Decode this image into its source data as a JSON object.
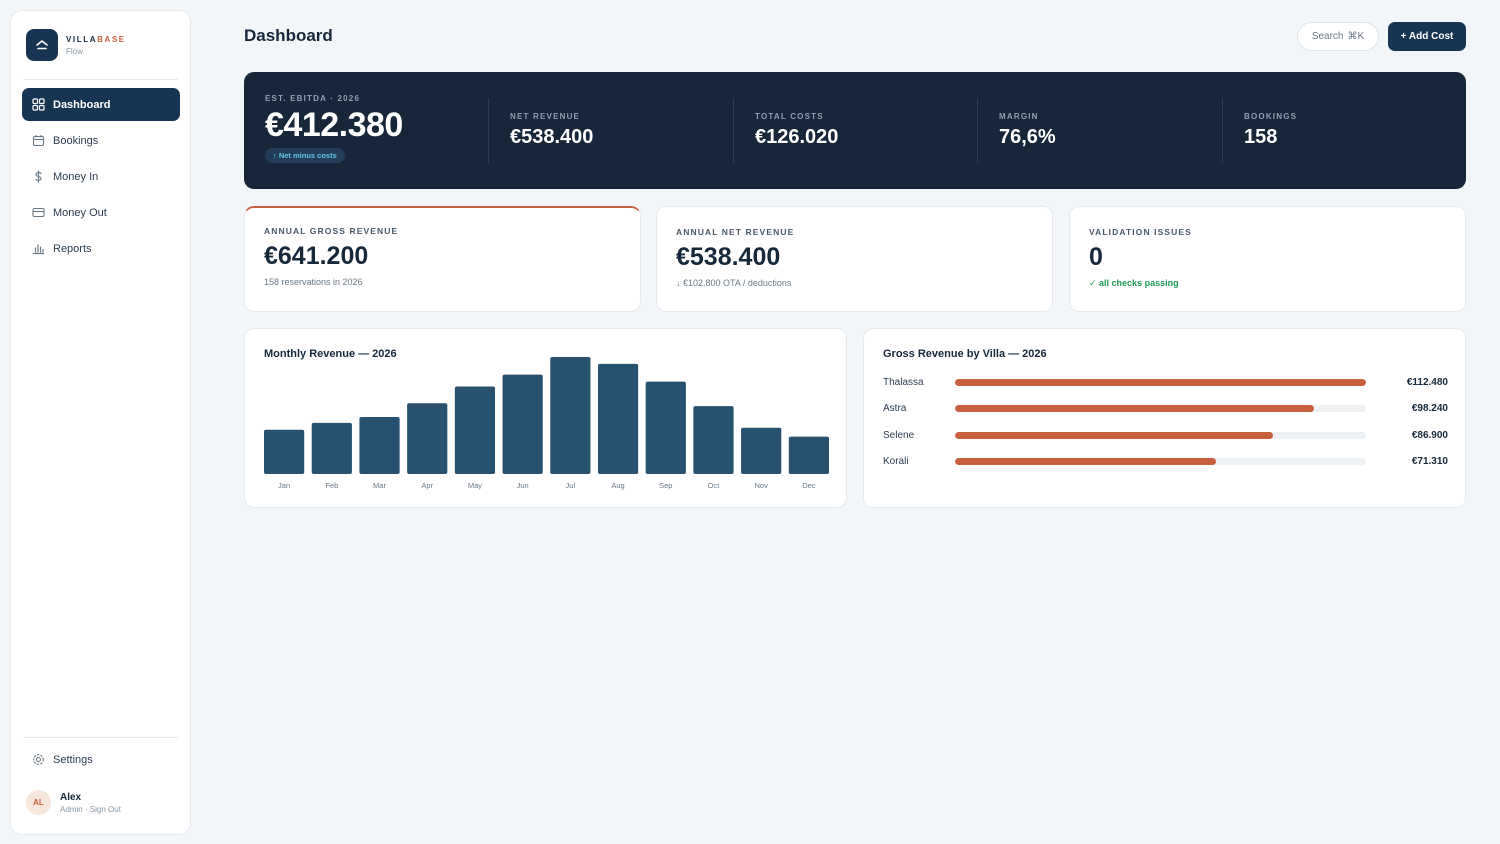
{
  "brand": {
    "name_part1": "VILLA",
    "name_part2": "BASE",
    "subtitle": "Flow"
  },
  "sidebar": {
    "items": [
      {
        "label": "Dashboard",
        "icon": "grid-icon",
        "active": true
      },
      {
        "label": "Bookings",
        "icon": "calendar-icon",
        "active": false
      },
      {
        "label": "Money In",
        "icon": "dollar-icon",
        "active": false
      },
      {
        "label": "Money Out",
        "icon": "credit-card-icon",
        "active": false
      },
      {
        "label": "Reports",
        "icon": "bar-chart-icon",
        "active": false
      }
    ],
    "settings_label": "Settings",
    "user": {
      "initials": "AL",
      "name": "Alex",
      "sub": "Admin · Sign Out"
    }
  },
  "header": {
    "title": "Dashboard",
    "search_label": "Search",
    "search_shortcut": "⌘K",
    "add_label": "+ Add Cost"
  },
  "hero": {
    "main_label": "EST. EBITDA · 2026",
    "main_value": "€412.380",
    "badge": "↑ Net minus costs",
    "stats": [
      {
        "label": "NET REVENUE",
        "value": "€538.400"
      },
      {
        "label": "TOTAL COSTS",
        "value": "€126.020"
      },
      {
        "label": "MARGIN",
        "value": "76,6%"
      },
      {
        "label": "BOOKINGS",
        "value": "158"
      }
    ]
  },
  "kpis": [
    {
      "label": "ANNUAL GROSS REVENUE",
      "value": "€641.200",
      "sub": "158 reservations in 2026"
    },
    {
      "label": "ANNUAL NET REVENUE",
      "value": "€538.400",
      "sub": "↓ €102.800 OTA / deductions"
    },
    {
      "label": "VALIDATION ISSUES",
      "value": "0",
      "sub": "✓ all checks passing"
    }
  ],
  "colors": {
    "navy": "#163552",
    "accent": "#c8603e",
    "bar": "#28506f",
    "success": "#1f9b55"
  },
  "chart_data": {
    "type": "bar",
    "title": "Monthly Revenue — 2026",
    "categories": [
      "Jan",
      "Feb",
      "Mar",
      "Apr",
      "May",
      "Jun",
      "Jul",
      "Aug",
      "Sep",
      "Oct",
      "Nov",
      "Dec"
    ],
    "values": [
      45,
      52,
      58,
      72,
      89,
      101,
      119,
      112,
      94,
      69,
      47,
      38
    ],
    "ylim": [
      0,
      120
    ],
    "grid": false,
    "legend": "none"
  },
  "villas": {
    "title": "Gross Revenue by Villa — 2026",
    "max": 112480,
    "rows": [
      {
        "name": "Thalassa",
        "value": 112480,
        "label": "€112.480"
      },
      {
        "name": "Astra",
        "value": 98240,
        "label": "€98.240"
      },
      {
        "name": "Selene",
        "value": 86900,
        "label": "€86.900"
      },
      {
        "name": "Korali",
        "value": 71310,
        "label": "€71.310"
      }
    ]
  }
}
